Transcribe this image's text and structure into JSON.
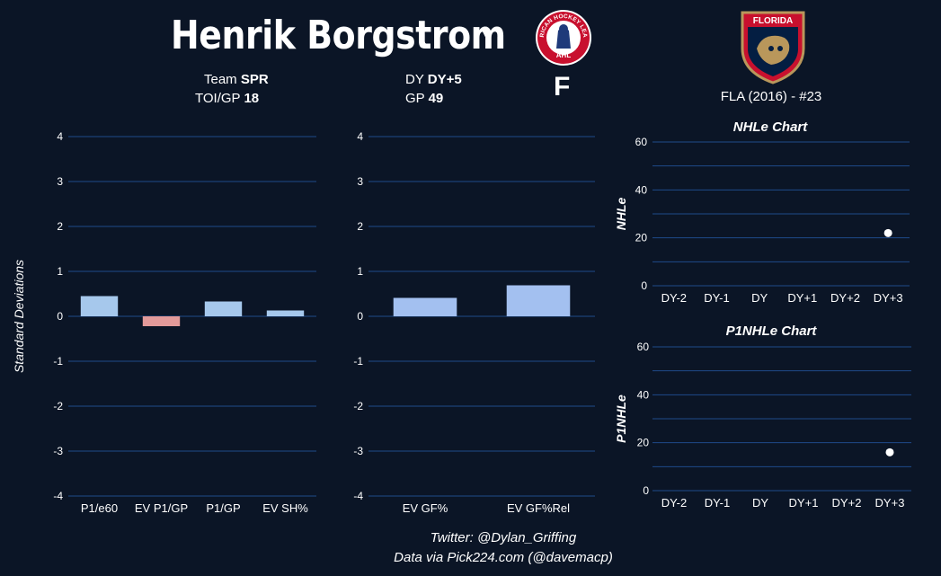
{
  "header": {
    "player_name": "Henrik Borgstrom",
    "team_label": "Team",
    "team_value": "SPR",
    "toi_label": "TOI/GP",
    "toi_value": "18",
    "dy_label": "DY",
    "dy_value": "DY+5",
    "gp_label": "GP",
    "gp_value": "49",
    "position": "F",
    "draft_info": "FLA (2016) - #23",
    "league_logo_text": "AMERICAN HOCKEY LEAGUE",
    "league_logo_short": "AHL",
    "nhl_team_logo_text": "FLORIDA"
  },
  "footer": {
    "twitter": "Twitter: @Dylan_Griffing",
    "source": "Data via Pick224.com (@davemacp)"
  },
  "colors": {
    "background": "#0b1526",
    "grid": "#1f4a8a",
    "bar_positive": "#a6c8ec",
    "bar_positive_alt": "#a3c0f0",
    "bar_negative": "#e39a9a",
    "point": "#ffffff"
  },
  "chart_data": [
    {
      "type": "bar",
      "id": "production",
      "ylabel": "Standard Deviations",
      "ylim": [
        -4,
        4
      ],
      "yticks": [
        4,
        3,
        2,
        1,
        0,
        -1,
        -2,
        -3,
        -4
      ],
      "categories": [
        "P1/e60",
        "EV P1/GP",
        "P1/GP",
        "EV SH%"
      ],
      "values": [
        0.45,
        -0.22,
        0.33,
        0.13
      ]
    },
    {
      "type": "bar",
      "id": "onice",
      "ylabel": "",
      "ylim": [
        -4,
        4
      ],
      "yticks": [
        4,
        3,
        2,
        1,
        0,
        -1,
        -2,
        -3,
        -4
      ],
      "categories": [
        "EV GF%",
        "EV GF%Rel"
      ],
      "values": [
        0.41,
        0.69
      ]
    },
    {
      "type": "scatter",
      "id": "nhle",
      "title": "NHLe Chart",
      "ylabel": "NHLe",
      "ylim": [
        0,
        60
      ],
      "yticks": [
        60,
        40,
        20,
        0
      ],
      "categories": [
        "DY-2",
        "DY-1",
        "DY",
        "DY+1",
        "DY+2",
        "DY+3"
      ],
      "points": [
        {
          "x": "DY+3",
          "y": 22
        }
      ]
    },
    {
      "type": "scatter",
      "id": "p1nhle",
      "title": "P1NHLe Chart",
      "ylabel": "P1NHLe",
      "ylim": [
        0,
        60
      ],
      "yticks": [
        60,
        40,
        20,
        0
      ],
      "categories": [
        "DY-2",
        "DY-1",
        "DY",
        "DY+1",
        "DY+2",
        "DY+3"
      ],
      "points": [
        {
          "x": "DY+3",
          "y": 16
        }
      ]
    }
  ]
}
